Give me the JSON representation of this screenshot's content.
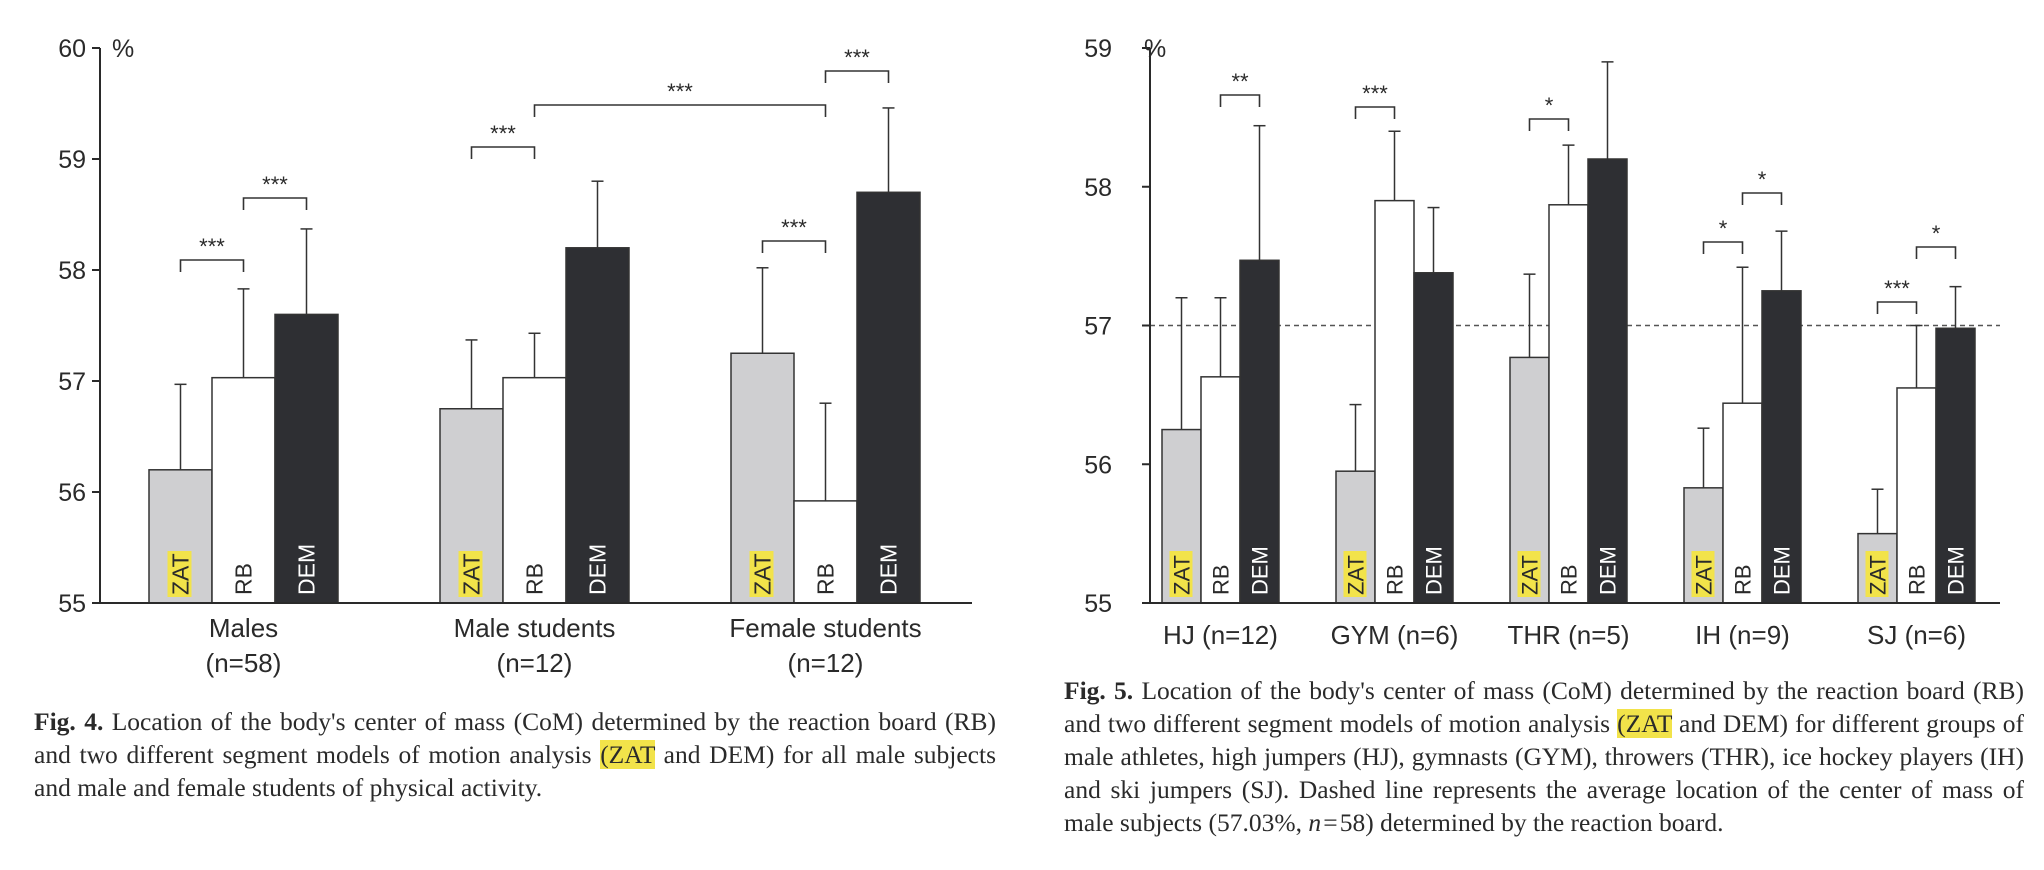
{
  "figures": {
    "fig4": {
      "caption": {
        "label": "Fig. 4.",
        "part1": " Location of the body's center of mass (CoM) determined by the reaction board (RB) and two different segment models of motion analysis ",
        "highlight": "(ZAT",
        "part2": " and DEM) for all male subjects and male and female students of physical activity."
      }
    },
    "fig5": {
      "caption": {
        "label": "Fig. 5.",
        "part1": " Location of the body's center of mass (CoM) determined by the reaction board (RB) and two different segment models of motion analysis ",
        "highlight": "(ZAT",
        "part2": " and DEM) for different groups of male athletes, high jumpers (HJ), gymnasts (GYM), throwers (THR), ice hockey players (IH) and ski jumpers (SJ). Dashed line represents the average location of the center of mass of male subjects (57.03%, ",
        "n_symbol": "n",
        "part3": " = 58) determined by the reaction board."
      }
    }
  },
  "colors": {
    "ZAT": "#cfcfd1",
    "RB": "#ffffff",
    "DEM": "#2e2f33",
    "highlight": "#f2e34a",
    "axis": "#2a2a2a"
  },
  "chart_data": [
    {
      "type": "bar",
      "figure": "Fig. 4",
      "title": "",
      "xlabel": "",
      "ylabel": "",
      "unit_label": "%",
      "ylim": [
        55,
        60
      ],
      "yticks": [
        55,
        56,
        57,
        58,
        59,
        60
      ],
      "categories": [
        "Males\n(n=58)",
        "Male students\n(n=12)",
        "Female students\n(n=12)"
      ],
      "series": [
        {
          "name": "ZAT",
          "values": [
            56.2,
            56.75,
            57.25
          ],
          "errors": [
            0.77,
            0.62,
            0.77
          ]
        },
        {
          "name": "RB",
          "values": [
            57.03,
            57.03,
            55.92
          ],
          "errors": [
            0.8,
            0.4,
            0.88
          ]
        },
        {
          "name": "DEM",
          "values": [
            57.6,
            58.2,
            58.7
          ],
          "errors": [
            0.77,
            0.6,
            0.76
          ]
        }
      ],
      "significance": [
        {
          "group": 0,
          "from": "ZAT",
          "to": "RB",
          "label": "***"
        },
        {
          "group": 0,
          "from": "RB",
          "to": "DEM",
          "label": "***"
        },
        {
          "group": 1,
          "from": "ZAT",
          "to": "RB",
          "label": "***"
        },
        {
          "group": 2,
          "from": "ZAT",
          "to": "RB",
          "label": "***"
        },
        {
          "group": 2,
          "from": "RB",
          "to": "DEM",
          "label": "***"
        },
        {
          "span": "Male students RB to Female students RB",
          "label": "***"
        }
      ],
      "grid": false
    },
    {
      "type": "bar",
      "figure": "Fig. 5",
      "title": "",
      "xlabel": "",
      "ylabel": "",
      "unit_label": "%",
      "ylim": [
        55,
        59
      ],
      "yticks": [
        55,
        56,
        57,
        58,
        59
      ],
      "reference_line": 57.0,
      "categories": [
        "HJ (n=12)",
        "GYM (n=6)",
        "THR (n=5)",
        "IH (n=9)",
        "SJ (n=6)"
      ],
      "series": [
        {
          "name": "ZAT",
          "values": [
            56.25,
            55.95,
            56.77,
            55.83,
            55.5
          ],
          "errors": [
            0.95,
            0.48,
            0.6,
            0.43,
            0.32
          ]
        },
        {
          "name": "RB",
          "values": [
            56.63,
            57.9,
            57.87,
            56.44,
            56.55
          ],
          "errors": [
            0.57,
            0.5,
            0.43,
            0.98,
            0.45
          ]
        },
        {
          "name": "DEM",
          "values": [
            57.47,
            57.38,
            58.2,
            57.25,
            56.98
          ],
          "errors": [
            0.97,
            0.47,
            0.7,
            0.43,
            0.3
          ]
        }
      ],
      "significance": [
        {
          "group": 0,
          "from": "RB",
          "to": "DEM",
          "label": "**"
        },
        {
          "group": 1,
          "from": "ZAT",
          "to": "RB",
          "label": "***"
        },
        {
          "group": 2,
          "from": "ZAT",
          "to": "RB",
          "label": "*"
        },
        {
          "group": 3,
          "from": "ZAT",
          "to": "RB",
          "label": "*"
        },
        {
          "group": 3,
          "from": "RB",
          "to": "DEM",
          "label": "*"
        },
        {
          "group": 4,
          "from": "ZAT",
          "to": "RB",
          "label": "***"
        },
        {
          "group": 4,
          "from": "RB",
          "to": "DEM",
          "label": "*"
        }
      ],
      "grid": false
    }
  ]
}
